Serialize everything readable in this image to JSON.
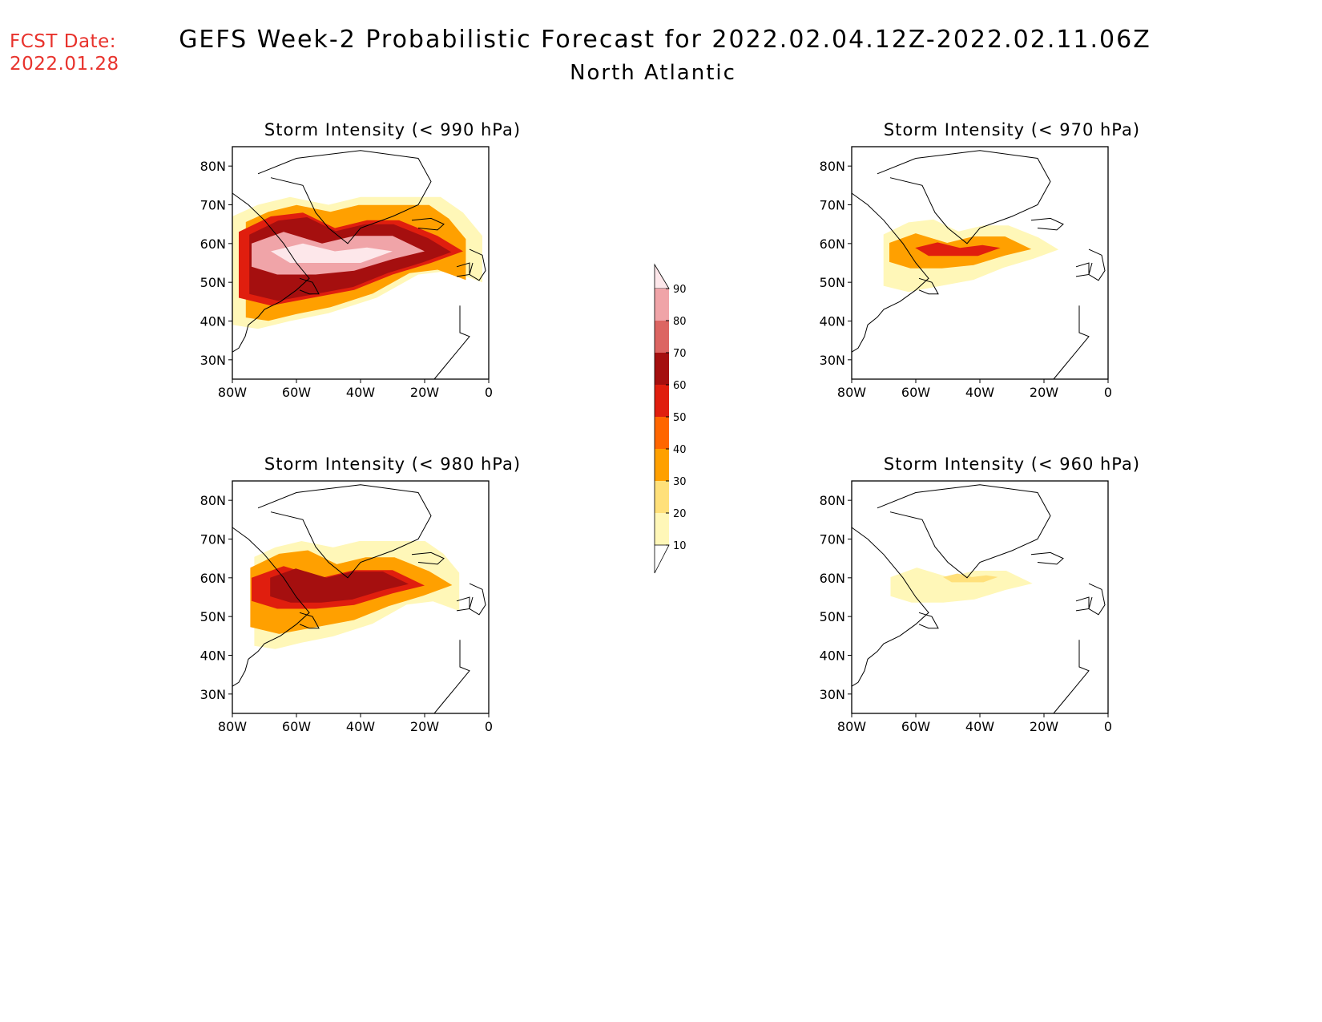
{
  "header": {
    "fcst_label": "FCST Date:",
    "fcst_date": "2022.01.28",
    "title": "GEFS Week-2 Probabilistic Forecast for 2022.02.04.12Z-2022.02.11.06Z",
    "subtitle": "North Atlantic"
  },
  "axes": {
    "lon_ticks": [
      "80W",
      "60W",
      "40W",
      "20W",
      "0"
    ],
    "lat_ticks": [
      "80N",
      "70N",
      "60N",
      "50N",
      "40N",
      "30N"
    ]
  },
  "colorbar": {
    "levels": [
      "90",
      "80",
      "70",
      "60",
      "50",
      "40",
      "30",
      "20",
      "10"
    ],
    "colors": [
      "#fde7ea",
      "#f0a4a8",
      "#dc6562",
      "#a50f0f",
      "#e01e0e",
      "#ff6600",
      "#ffa000",
      "#ffe07a",
      "#fff7b8"
    ]
  },
  "panels": [
    {
      "id": "p990",
      "title": "Storm Intensity (< 990 hPa)",
      "intensity": 4
    },
    {
      "id": "p970",
      "title": "Storm Intensity (< 970 hPa)",
      "intensity": 2
    },
    {
      "id": "p980",
      "title": "Storm Intensity (< 980 hPa)",
      "intensity": 3
    },
    {
      "id": "p960",
      "title": "Storm Intensity (< 960 hPa)",
      "intensity": 1
    }
  ]
}
